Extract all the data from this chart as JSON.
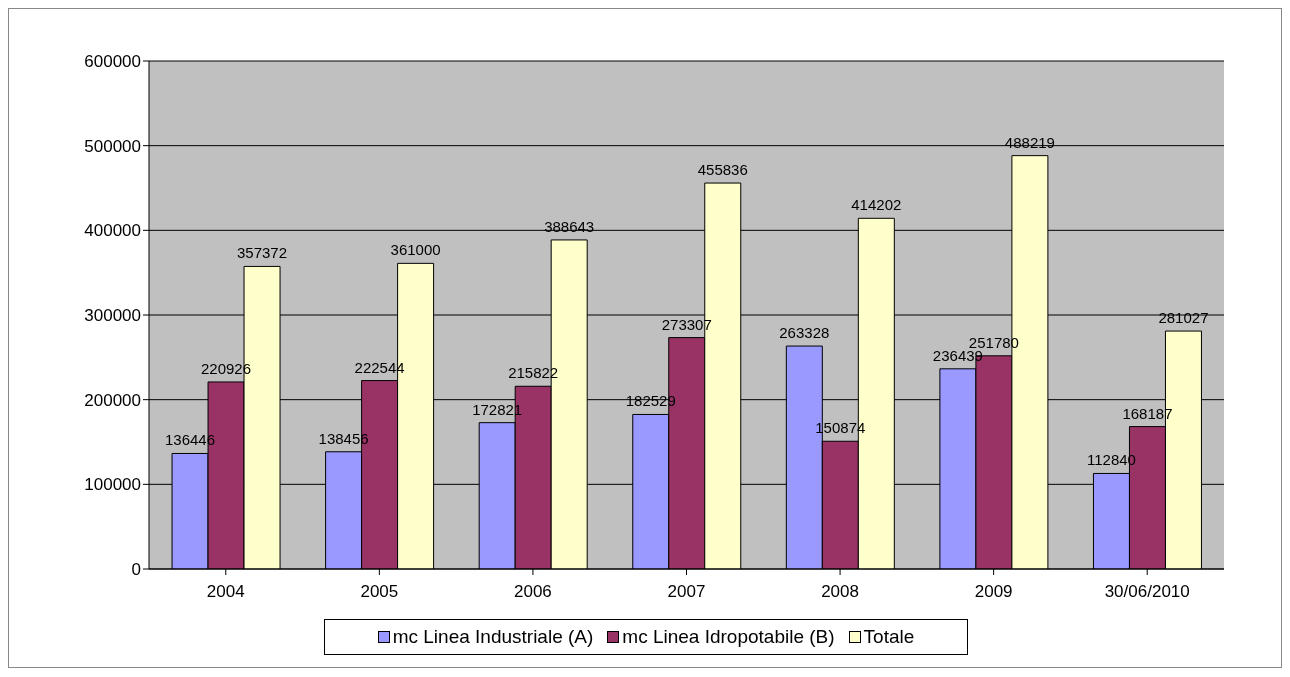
{
  "chart_data": {
    "type": "bar",
    "categories": [
      "2004",
      "2005",
      "2006",
      "2007",
      "2008",
      "2009",
      "30/06/2010"
    ],
    "series": [
      {
        "name": "mc Linea Industriale (A)",
        "color": "#9999ff",
        "values": [
          136446,
          138456,
          172821,
          182529,
          263328,
          236439,
          112840
        ]
      },
      {
        "name": "mc Linea Idropotabile (B)",
        "color": "#993366",
        "values": [
          220926,
          222544,
          215822,
          273307,
          150874,
          251780,
          168187
        ]
      },
      {
        "name": "Totale",
        "color": "#ffffcc",
        "values": [
          357372,
          361000,
          388643,
          455836,
          414202,
          488219,
          281027
        ]
      }
    ],
    "ylim": [
      0,
      600000
    ],
    "yticks": [
      0,
      100000,
      200000,
      300000,
      400000,
      500000,
      600000
    ],
    "grid": "y",
    "legend": "bottom",
    "data_labels": true
  }
}
